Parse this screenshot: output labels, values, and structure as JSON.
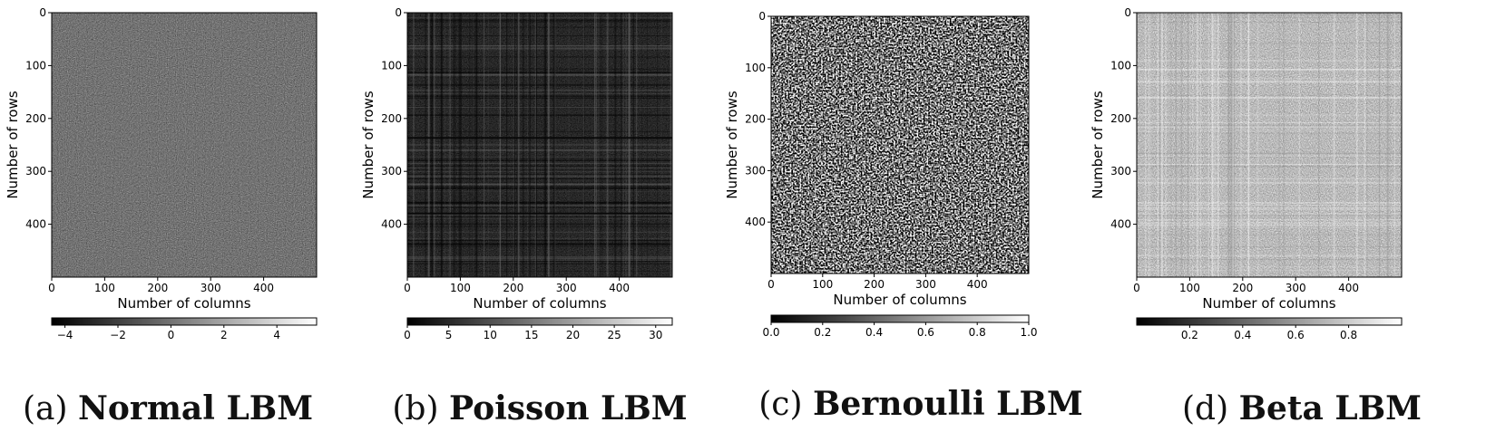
{
  "chart_data": [
    {
      "type": "heatmap",
      "caption_letter": "(a)",
      "caption_title": "Normal LBM",
      "xlabel": "Number of columns",
      "ylabel": "Number of rows",
      "x_ticks": [
        "0",
        "100",
        "200",
        "300",
        "400"
      ],
      "y_ticks": [
        "0",
        "100",
        "200",
        "300",
        "400"
      ],
      "shape": [
        500,
        500
      ],
      "colormap": "gray",
      "value_range": [
        -4.5,
        5.5
      ],
      "colorbar_ticks": [
        -4,
        -2,
        0,
        2,
        4
      ],
      "colorbar_tick_labels": [
        "−4",
        "−2",
        "0",
        "2",
        "4"
      ],
      "texture": "uniform fine noise, mid grey",
      "grid": false
    },
    {
      "type": "heatmap",
      "caption_letter": "(b)",
      "caption_title": "Poisson LBM",
      "xlabel": "Number of columns",
      "ylabel": "Number of rows",
      "x_ticks": [
        "0",
        "100",
        "200",
        "300",
        "400"
      ],
      "y_ticks": [
        "0",
        "100",
        "200",
        "300",
        "400"
      ],
      "shape": [
        500,
        500
      ],
      "colormap": "gray",
      "value_range": [
        0,
        32
      ],
      "colorbar_ticks": [
        0,
        5,
        10,
        15,
        20,
        25,
        30
      ],
      "colorbar_tick_labels": [
        "0",
        "5",
        "10",
        "15",
        "20",
        "25",
        "30"
      ],
      "texture": "dark with horizontal and vertical banding",
      "grid": false
    },
    {
      "type": "heatmap",
      "caption_letter": "(c)",
      "caption_title": "Bernoulli LBM",
      "xlabel": "Number of columns",
      "ylabel": "Number of rows",
      "x_ticks": [
        "0",
        "100",
        "200",
        "300",
        "400"
      ],
      "y_ticks": [
        "0",
        "100",
        "200",
        "300",
        "400"
      ],
      "shape": [
        500,
        500
      ],
      "colormap": "gray",
      "value_range": [
        0,
        1
      ],
      "colorbar_ticks": [
        0.0,
        0.2,
        0.4,
        0.6,
        0.8,
        1.0
      ],
      "colorbar_tick_labels": [
        "0.0",
        "0.2",
        "0.4",
        "0.6",
        "0.8",
        "1.0"
      ],
      "texture": "high contrast black and white noise",
      "grid": false
    },
    {
      "type": "heatmap",
      "caption_letter": "(d)",
      "caption_title": "Beta LBM",
      "xlabel": "Number of columns",
      "ylabel": "Number of rows",
      "x_ticks": [
        "0",
        "100",
        "200",
        "300",
        "400"
      ],
      "y_ticks": [
        "0",
        "100",
        "200",
        "300",
        "400"
      ],
      "shape": [
        500,
        500
      ],
      "colormap": "gray",
      "value_range": [
        0,
        1
      ],
      "colorbar_ticks": [
        0.2,
        0.4,
        0.6,
        0.8
      ],
      "colorbar_tick_labels": [
        "0.2",
        "0.4",
        "0.6",
        "0.8"
      ],
      "texture": "light grey with faint banding",
      "grid": false
    }
  ]
}
